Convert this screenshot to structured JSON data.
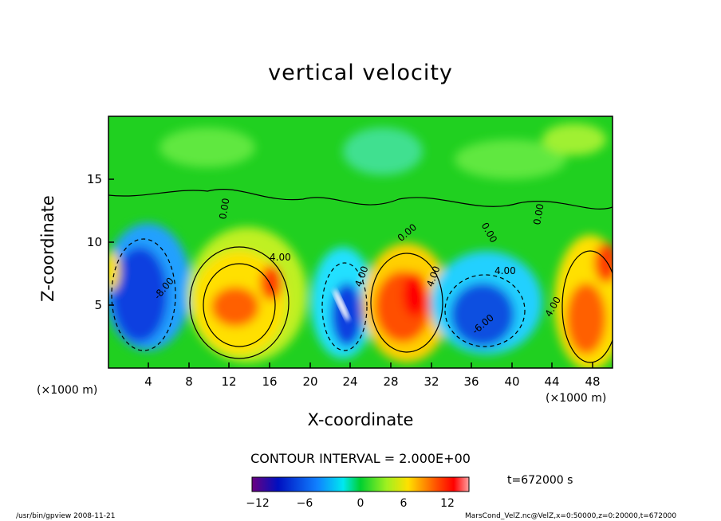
{
  "chart_data": {
    "type": "contour",
    "title": "vertical velocity",
    "xlabel": "X-coordinate",
    "ylabel": "Z-coordinate",
    "x_unit": "(×1000 m)",
    "y_unit": "(×1000 m)",
    "xlim": [
      0,
      50
    ],
    "ylim": [
      0,
      20
    ],
    "x_ticks": [
      "4",
      "8",
      "12",
      "16",
      "20",
      "24",
      "28",
      "32",
      "36",
      "40",
      "44",
      "48"
    ],
    "y_ticks": [
      "5",
      "10",
      "15"
    ],
    "contour_interval": "CONTOUR INTERVAL = 2.000E+00",
    "time_label": "t=672000 s",
    "colorbar": {
      "range": [
        -14,
        14
      ],
      "ticks": [
        "−12",
        "−6",
        "0",
        "6",
        "12"
      ]
    },
    "contour_labels": [
      "4.00",
      "-8.00",
      "4.00",
      "4.00",
      "0.00",
      "4.00",
      "-6.00",
      "4.00",
      "0.00",
      "0.00",
      "0.00"
    ],
    "cells": [
      {
        "x": 4,
        "z": 6,
        "value": -10
      },
      {
        "x": 14,
        "z": 5,
        "value": 10
      },
      {
        "x": 23,
        "z": 5,
        "value": -13
      },
      {
        "x": 30,
        "z": 5,
        "value": 11
      },
      {
        "x": 37,
        "z": 4,
        "value": -9
      },
      {
        "x": 48,
        "z": 5,
        "value": 8
      }
    ]
  },
  "footer": {
    "left": "/usr/bin/gpview   2008-11-21",
    "right": "MarsCond_VelZ.nc@VelZ,x=0:50000,z=0:20000,t=672000"
  },
  "colors": {
    "background": "#00d020",
    "strong_negative": "#0020d0",
    "negative": "#00e0ff",
    "positive": "#ffd000",
    "strong_positive": "#ff2000"
  }
}
